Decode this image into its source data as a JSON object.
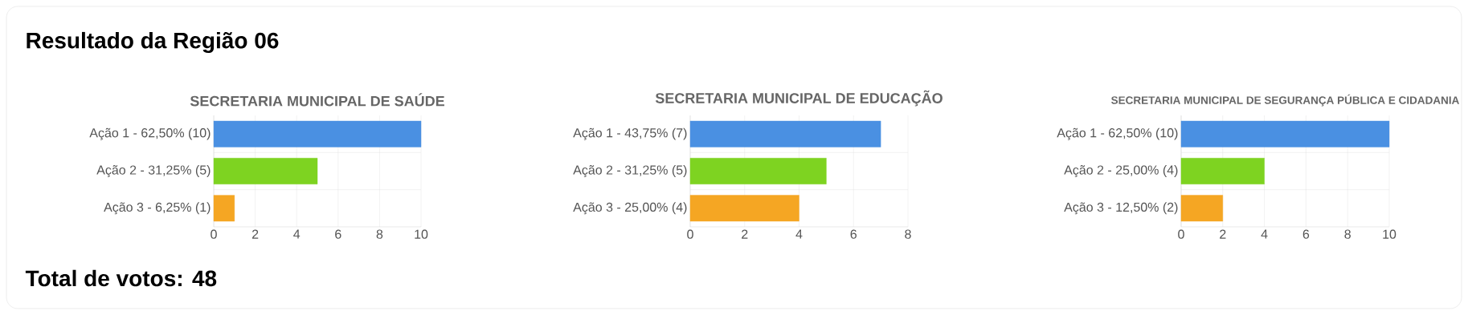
{
  "chart_data": [
    {
      "type": "other",
      "title": "Resultado da Região 06",
      "annotations": [
        "Total de votos: 48"
      ]
    },
    {
      "type": "bar",
      "orientation": "horizontal",
      "title": "SECRETARIA MUNICIPAL DE SAÚDE",
      "categories": [
        "Ação 1 - 62,50% (10)",
        "Ação 2 - 31,25% (5)",
        "Ação 3 - 6,25% (1)"
      ],
      "values": [
        10,
        5,
        1
      ],
      "colors": [
        "#4a90e2",
        "#7ed321",
        "#f5a623"
      ],
      "xlim": [
        0,
        10
      ],
      "xticks": [
        0,
        2,
        4,
        6,
        8,
        10
      ],
      "grid": true
    },
    {
      "type": "bar",
      "orientation": "horizontal",
      "title": "SECRETARIA MUNICIPAL DE EDUCAÇÃO",
      "categories": [
        "Ação 1 - 43,75% (7)",
        "Ação 2 - 31,25% (5)",
        "Ação 3 - 25,00% (4)"
      ],
      "values": [
        7,
        5,
        4
      ],
      "colors": [
        "#4a90e2",
        "#7ed321",
        "#f5a623"
      ],
      "xlim": [
        0,
        8
      ],
      "xticks": [
        0,
        2,
        4,
        6,
        8
      ],
      "grid": true
    },
    {
      "type": "bar",
      "orientation": "horizontal",
      "title": "SECRETARIA MUNICIPAL DE SEGURANÇA PÚBLICA E CIDADANIA",
      "categories": [
        "Ação 1 - 62,50% (10)",
        "Ação 2 - 25,00% (4)",
        "Ação 3 - 12,50% (2)"
      ],
      "values": [
        10,
        4,
        2
      ],
      "colors": [
        "#4a90e2",
        "#7ed321",
        "#f5a623"
      ],
      "xlim": [
        0,
        10
      ],
      "xticks": [
        0,
        2,
        4,
        6,
        8,
        10
      ],
      "grid": true
    }
  ]
}
